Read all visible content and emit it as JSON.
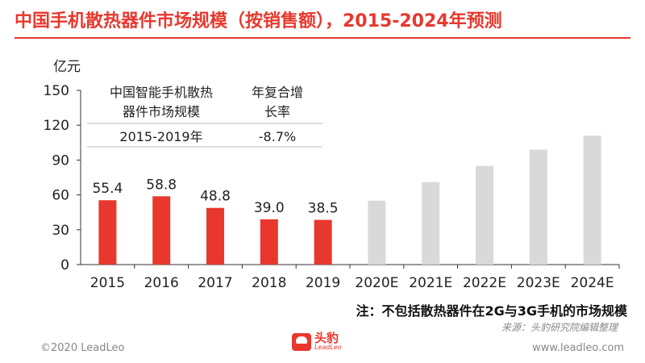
{
  "page": {
    "title": "中国手机散热器件市场规模（按销售额），2015-2024年预测",
    "y_unit": "亿元",
    "note": "注：不包括散热器件在2G与3G手机的市场规模",
    "source": "来源：头豹研究院编辑整理",
    "footer_left": "©2020 LeadLeo",
    "footer_right": "www.leadleo.com",
    "logo_cn": "头豹",
    "logo_en": "LeadLeo"
  },
  "inset_table": {
    "header_1_line1": "中国智能手机散热",
    "header_1_line2": "器件市场规模",
    "header_2_line1": "年复合增",
    "header_2_line2": "长率",
    "row_period": "2015-2019年",
    "row_cagr": "-8.7%"
  },
  "chart_data": {
    "type": "bar",
    "categories": [
      "2015",
      "2016",
      "2017",
      "2018",
      "2019",
      "2020E",
      "2021E",
      "2022E",
      "2023E",
      "2024E"
    ],
    "values": [
      55.4,
      58.8,
      48.8,
      39.0,
      38.5,
      55,
      71,
      85,
      99,
      111
    ],
    "data_labels": [
      "55.4",
      "58.8",
      "48.8",
      "39.0",
      "38.5",
      "",
      "",
      "",
      "",
      ""
    ],
    "bar_colors": [
      "#e8382e",
      "#e8382e",
      "#e8382e",
      "#e8382e",
      "#e8382e",
      "#d9d9d9",
      "#d9d9d9",
      "#d9d9d9",
      "#d9d9d9",
      "#d9d9d9"
    ],
    "ylabel": "亿元",
    "ylim": [
      0,
      150
    ],
    "yticks": [
      0,
      30,
      60,
      90,
      120,
      150
    ],
    "grid": false
  }
}
